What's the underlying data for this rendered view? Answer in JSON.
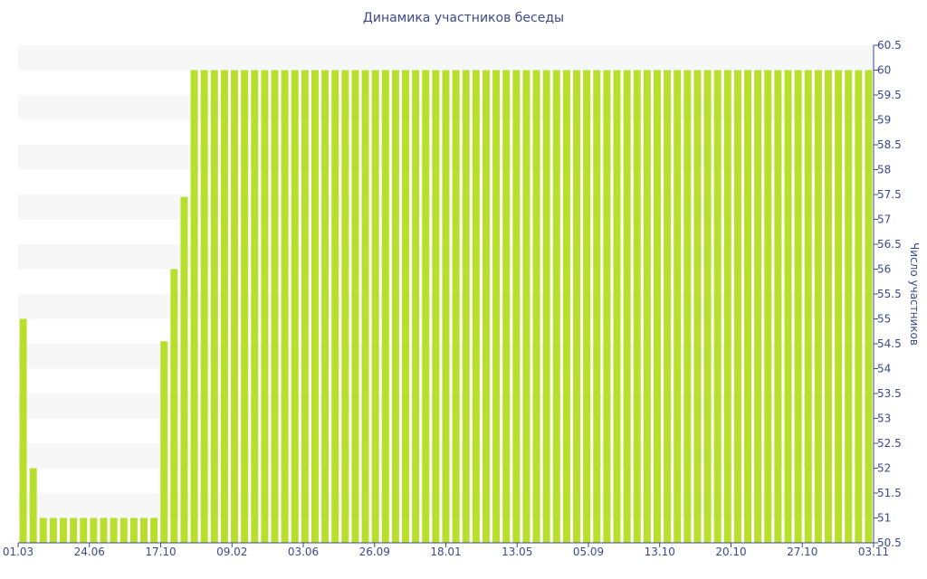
{
  "chart_data": {
    "type": "bar",
    "title": "Динамика участников беседы",
    "xlabel": "",
    "ylabel": "Число участников",
    "ylim": [
      50.5,
      60.5
    ],
    "y_ticks": [
      50.5,
      51,
      51.5,
      52,
      52.5,
      53,
      53.5,
      54,
      54.5,
      55,
      55.5,
      56,
      56.5,
      57,
      57.5,
      58,
      58.5,
      59,
      59.5,
      60,
      60.5
    ],
    "x_tick_labels": [
      "01.03",
      "24.06",
      "17.10",
      "09.02",
      "03.06",
      "26.09",
      "18.01",
      "13.05",
      "05.09",
      "13.10",
      "20.10",
      "27.10",
      "03.11"
    ],
    "y_axis_position": "right",
    "grid": "horizontal-bands",
    "colors": {
      "bar": "#b8df2c",
      "band": "#f7f7f7",
      "text": "#3b4a8a",
      "axis": "#3b4a8a"
    },
    "values": [
      55,
      52,
      51,
      51,
      51,
      51,
      51,
      51,
      51,
      51,
      51,
      51,
      51,
      51,
      54.55,
      56,
      57.45,
      60,
      60,
      60,
      60,
      60,
      60,
      60,
      60,
      60,
      60,
      60,
      60,
      60,
      60,
      60,
      60,
      60,
      60,
      60,
      60,
      60,
      60,
      60,
      60,
      60,
      60,
      60,
      60,
      60,
      60,
      60,
      60,
      60,
      60,
      60,
      60,
      60,
      60,
      60,
      60,
      60,
      60,
      60,
      60,
      60,
      60,
      60,
      60,
      60,
      60,
      60,
      60,
      60,
      60,
      60,
      60,
      60,
      60,
      60,
      60,
      60,
      60,
      60,
      60,
      60,
      60,
      60,
      60
    ]
  }
}
